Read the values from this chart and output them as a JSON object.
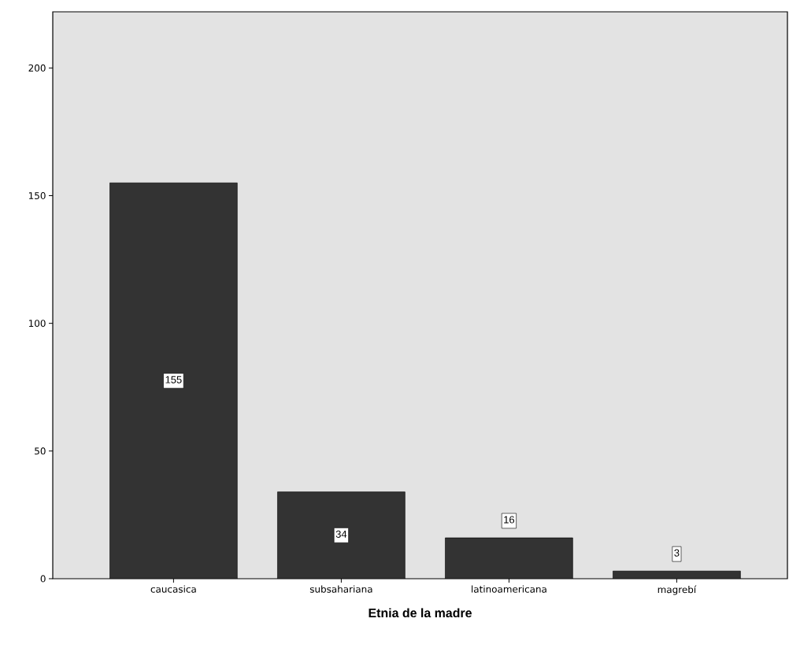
{
  "chart_data": {
    "type": "bar",
    "xlabel": "Etnia de la madre",
    "categories": [
      "caucasica",
      "subsahariana",
      "latinoamericana",
      "magrebí"
    ],
    "values": [
      155,
      34,
      16,
      3
    ],
    "color": "#333333",
    "ylim": [
      0,
      222
    ],
    "yticks": [
      0,
      50,
      100,
      150,
      200
    ],
    "data_labels": true,
    "grid": false
  }
}
